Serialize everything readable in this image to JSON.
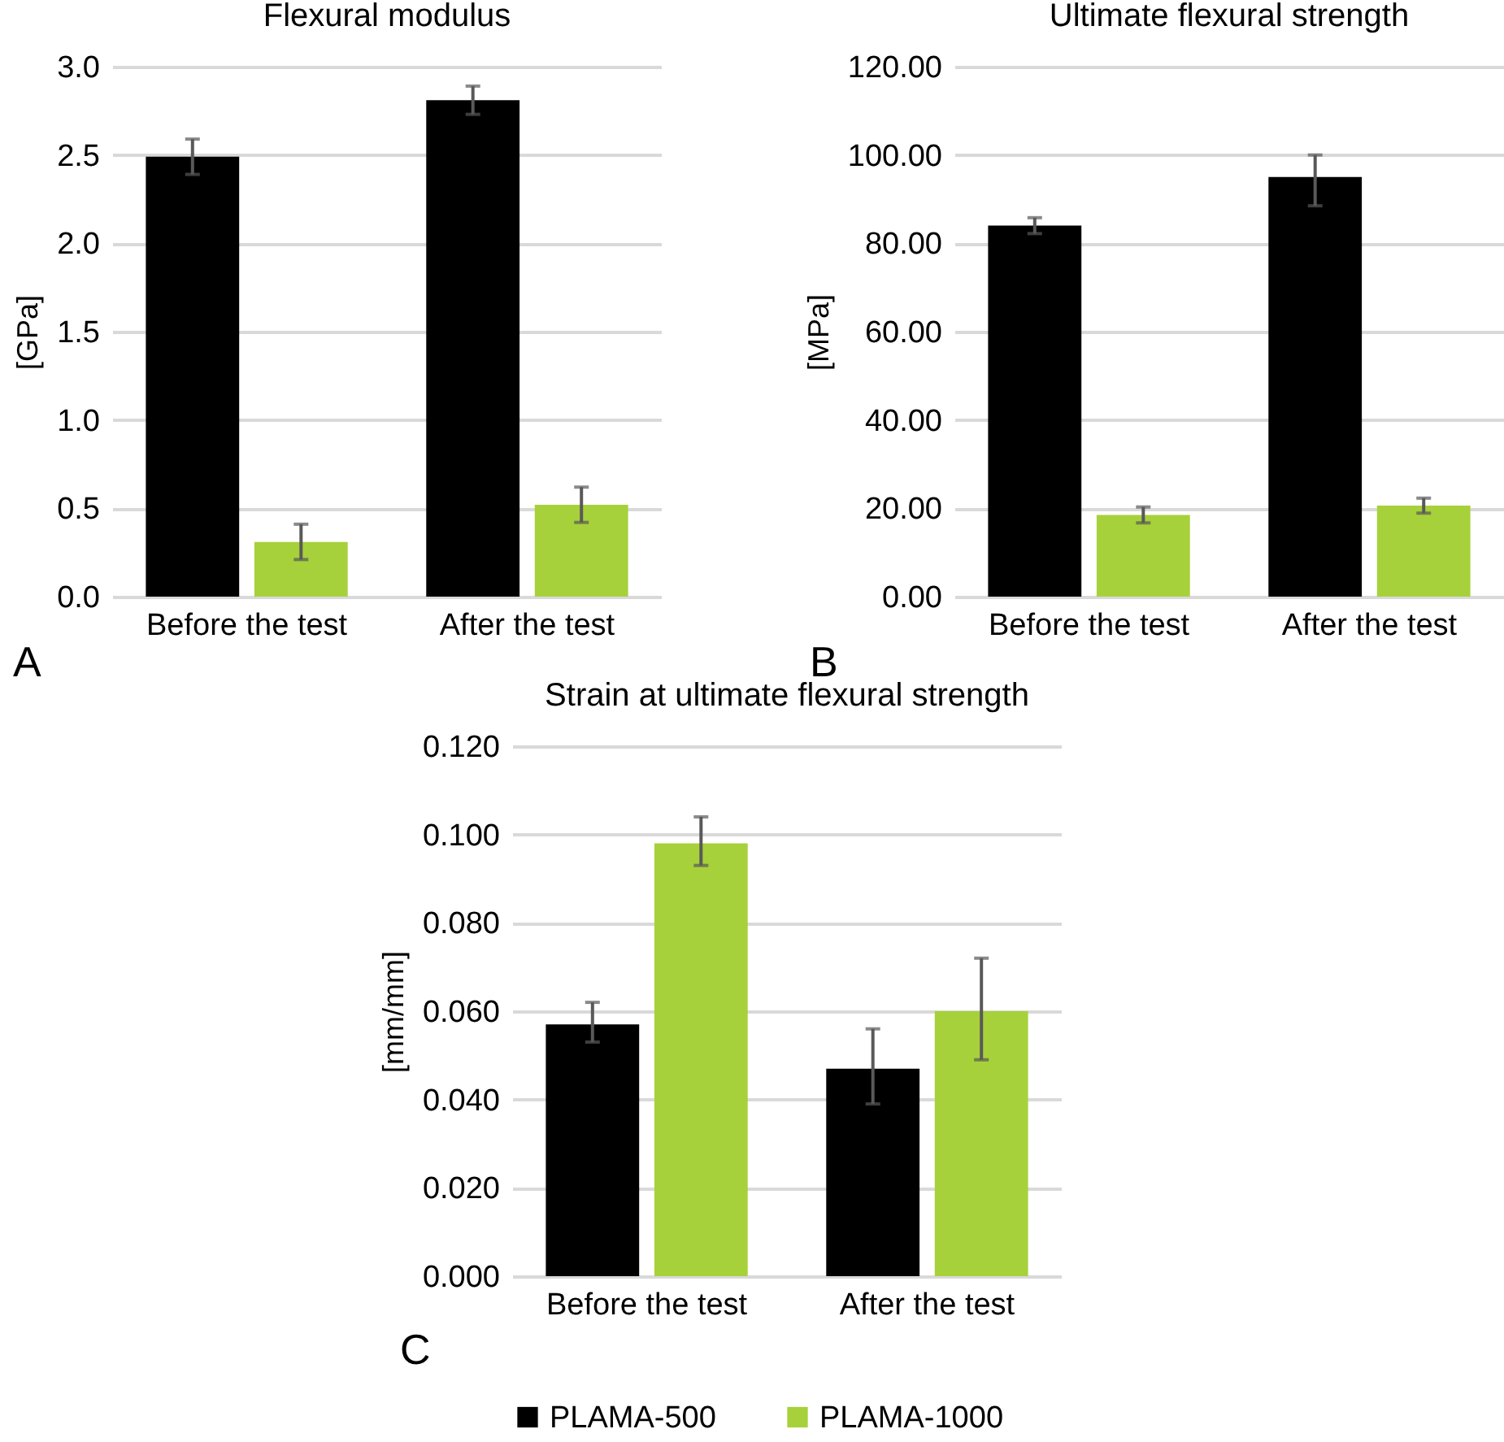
{
  "chart_data": [
    {
      "type": "bar",
      "title": "Flexural modulus",
      "ylabel": "[GPa]",
      "categories": [
        "Before the test",
        "After the test"
      ],
      "series": [
        {
          "color": "#000000",
          "values": [
            2.49,
            2.81
          ],
          "errors": [
            0.1,
            0.08
          ]
        },
        {
          "color": "#a7d13a",
          "values": [
            0.31,
            0.52
          ],
          "errors": [
            0.1,
            0.1
          ]
        }
      ],
      "ylim": [
        0,
        3
      ],
      "yticks": [
        {
          "value": 0,
          "label": "0.0"
        },
        0.5,
        {
          "value": 1,
          "label": "1.0"
        },
        1.5,
        {
          "value": 2,
          "label": "2.0"
        },
        2.5,
        {
          "value": 3,
          "label": "3.0"
        }
      ],
      "grid": "y",
      "legend": false,
      "annotations": [
        "A"
      ]
    },
    {
      "type": "bar",
      "title": "Ultimate flexural strength",
      "ylabel": "[MPa]",
      "categories": [
        "Before the test",
        "After the test"
      ],
      "series": [
        {
          "color": "#000000",
          "values": [
            84,
            95
          ],
          "errors": [
            1.8,
            [
              88.5,
              100
            ]
          ]
        },
        {
          "color": "#a7d13a",
          "values": [
            18.5,
            20.6
          ],
          "errors": [
            1.8,
            1.7
          ]
        }
      ],
      "ylim": [
        0,
        120
      ],
      "yticks": [
        {
          "value": 0,
          "label": "0.00"
        },
        {
          "value": 20,
          "label": "20.00"
        },
        {
          "value": 40,
          "label": "40.00"
        },
        {
          "value": 60,
          "label": "60.00"
        },
        {
          "value": 80,
          "label": "80.00"
        },
        {
          "value": 100,
          "label": "100.00"
        },
        {
          "value": 120,
          "label": "120.00"
        }
      ],
      "grid": "y",
      "legend": false,
      "annotations": [
        "B"
      ]
    },
    {
      "type": "bar",
      "title": "Strain at ultimate flexural strength",
      "ylabel": "[mm/mm]",
      "categories": [
        "Before the test",
        "After the test"
      ],
      "series": [
        {
          "name": "PLAMA-500",
          "color": "#000000",
          "values": [
            0.057,
            0.047
          ],
          "errors": [
            [
              0.053,
              0.062
            ],
            [
              0.039,
              0.056
            ]
          ]
        },
        {
          "name": "PLAMA-1000",
          "color": "#a7d13a",
          "values": [
            0.098,
            0.06
          ],
          "errors": [
            [
              0.093,
              0.104
            ],
            [
              0.049,
              0.072
            ]
          ]
        }
      ],
      "ylim": [
        0,
        0.12
      ],
      "yticks": [
        {
          "value": 0,
          "label": "0.000"
        },
        {
          "value": 0.02,
          "label": "0.020"
        },
        {
          "value": 0.04,
          "label": "0.040"
        },
        {
          "value": 0.06,
          "label": "0.060"
        },
        {
          "value": 0.08,
          "label": "0.080"
        },
        {
          "value": 0.1,
          "label": "0.100"
        },
        {
          "value": 0.12,
          "label": "0.120"
        }
      ],
      "grid": "y",
      "legend": "bottom",
      "annotations": [
        "C"
      ]
    }
  ]
}
